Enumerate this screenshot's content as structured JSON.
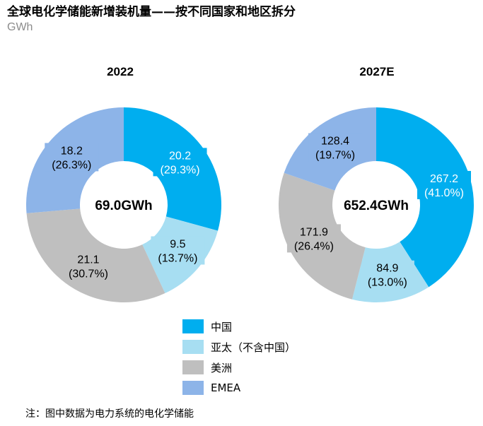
{
  "title": "全球电化学储能新增装机量——按不同国家和地区拆分",
  "unit": "GWh",
  "note": "注：图中数据为电力系统的电化学储能",
  "colors": {
    "china": "#00AEEF",
    "apac": "#A7DEF2",
    "americas": "#BFBFBF",
    "emea": "#8DB4E8"
  },
  "chart_data": [
    {
      "type": "pie",
      "title": "2022",
      "center_label": "69.0GWh",
      "total": 69.0,
      "slices": [
        {
          "name": "中国",
          "value": 20.2,
          "share": "29.3%",
          "label_value": "20.2",
          "label_share": "(29.3%)"
        },
        {
          "name": "亚太（不含中国）",
          "value": 9.5,
          "share": "13.7%",
          "label_value": "9.5",
          "label_share": "(13.7%)"
        },
        {
          "name": "美洲",
          "value": 21.1,
          "share": "30.7%",
          "label_value": "21.1",
          "label_share": "(30.7%)"
        },
        {
          "name": "EMEA",
          "value": 18.2,
          "share": "26.3%",
          "label_value": "18.2",
          "label_share": "(26.3%)"
        }
      ]
    },
    {
      "type": "pie",
      "title": "2027E",
      "center_label": "652.4GWh",
      "total": 652.4,
      "slices": [
        {
          "name": "中国",
          "value": 267.2,
          "share": "41.0%",
          "label_value": "267.2",
          "label_share": "(41.0%)"
        },
        {
          "name": "亚太（不含中国）",
          "value": 84.9,
          "share": "13.0%",
          "label_value": "84.9",
          "label_share": "(13.0%)"
        },
        {
          "name": "美洲",
          "value": 171.9,
          "share": "26.4%",
          "label_value": "171.9",
          "label_share": "(26.4%)"
        },
        {
          "name": "EMEA",
          "value": 128.4,
          "share": "19.7%",
          "label_value": "128.4",
          "label_share": "(19.7%)"
        }
      ]
    }
  ],
  "legend": [
    {
      "label": "中国",
      "color_key": "china"
    },
    {
      "label": "亚太（不含中国）",
      "color_key": "apac"
    },
    {
      "label": "美洲",
      "color_key": "americas"
    },
    {
      "label": "EMEA",
      "color_key": "emea"
    }
  ]
}
